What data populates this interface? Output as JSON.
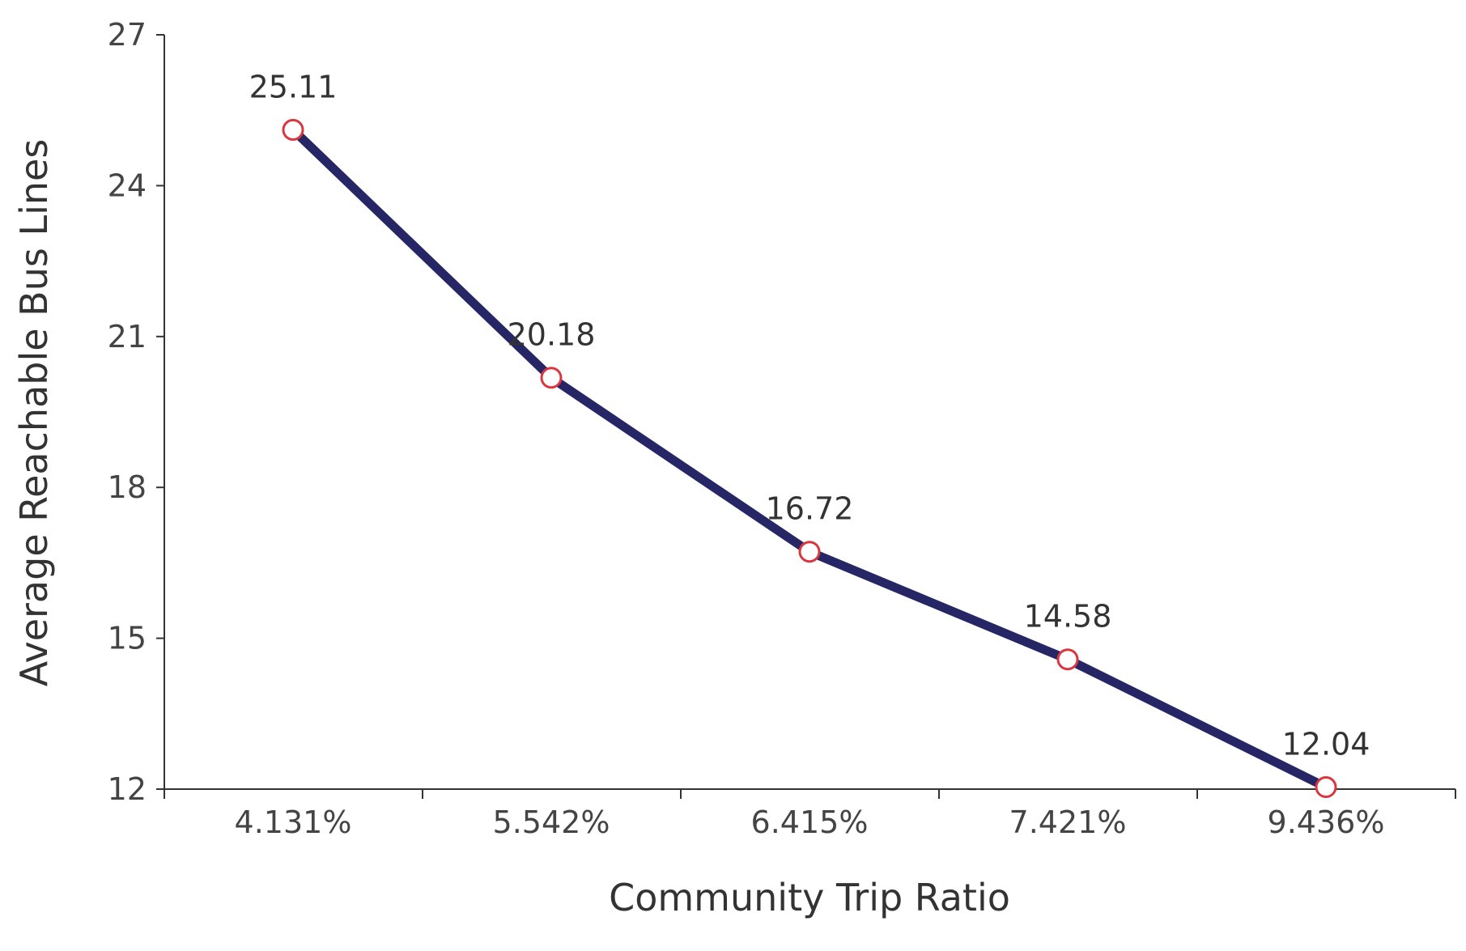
{
  "chart_data": {
    "type": "line",
    "title": "",
    "xlabel": "Community Trip Ratio",
    "ylabel": "Average Reachable Bus Lines",
    "categories": [
      "4.131%",
      "5.542%",
      "6.415%",
      "7.421%",
      "9.436%"
    ],
    "series": [
      {
        "values": [
          25.11,
          20.18,
          16.72,
          14.58,
          12.04
        ],
        "data_labels": [
          "25.11",
          "20.18",
          "16.72",
          "14.58",
          "12.04"
        ]
      }
    ],
    "yticks": [
      "12",
      "15",
      "18",
      "21",
      "24",
      "27"
    ],
    "ylim": [
      12,
      27
    ],
    "grid": false,
    "legend": "none",
    "colors": {
      "line": "#262667",
      "marker_stroke": "#d9363e",
      "marker_fill": "#ffffff",
      "axis": "#333333",
      "text": "#444444"
    }
  }
}
